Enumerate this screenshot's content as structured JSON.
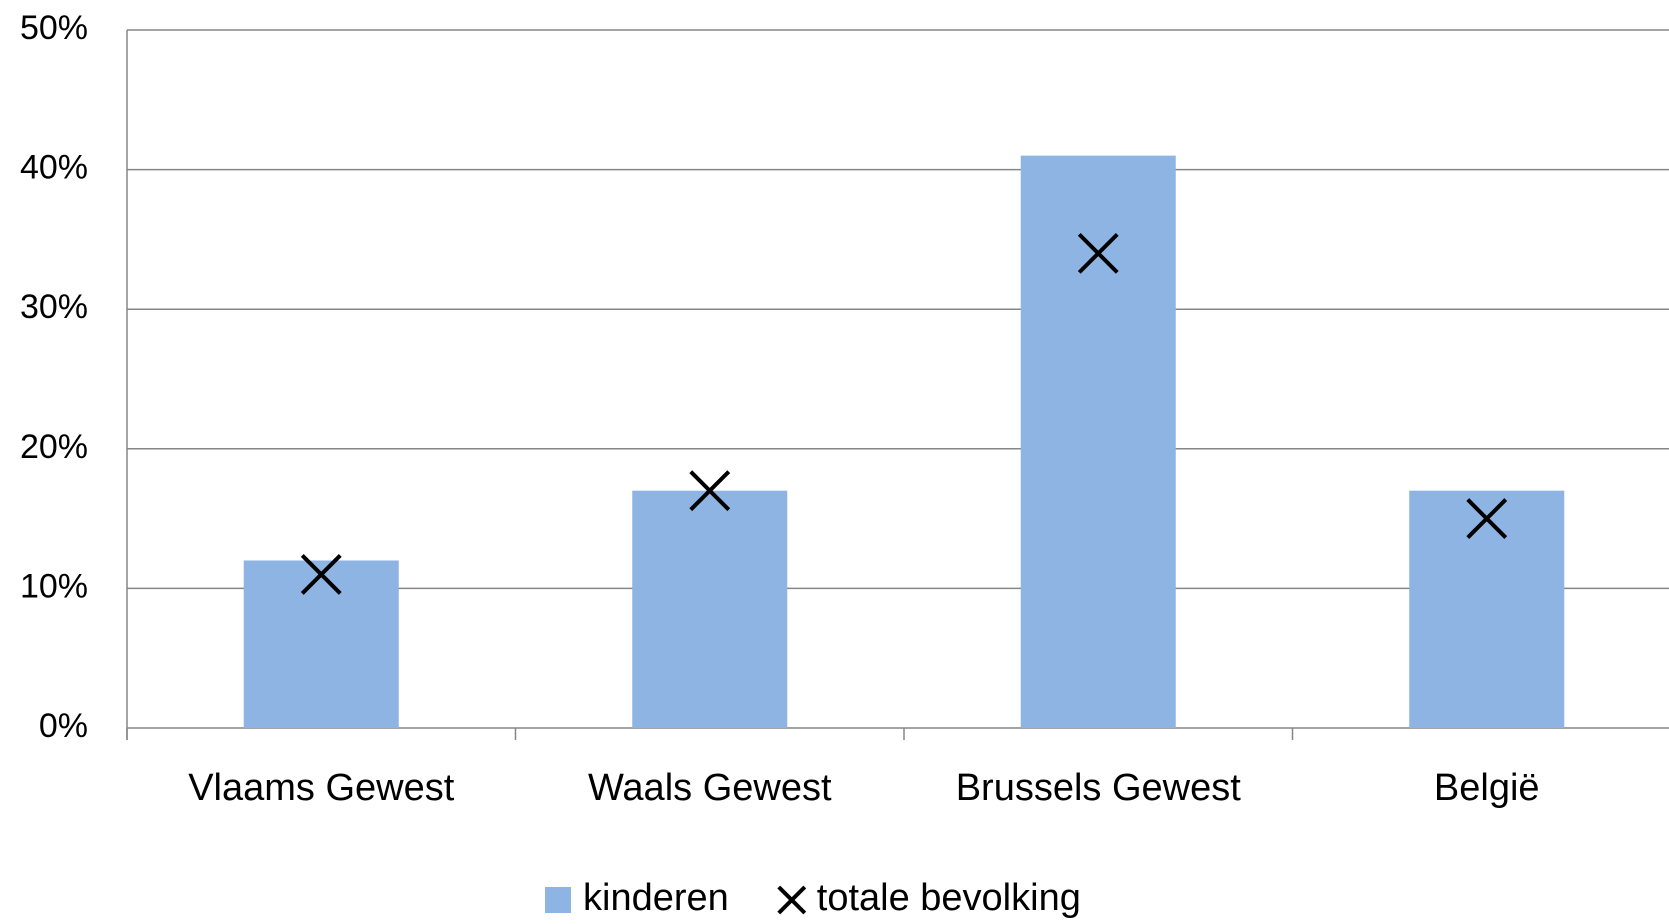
{
  "chart_data": {
    "type": "bar",
    "categories": [
      "Vlaams Gewest",
      "Waals Gewest",
      "Brussels Gewest",
      "België"
    ],
    "series": [
      {
        "name": "kinderen",
        "color": "#8eb4e3",
        "values": [
          12,
          17,
          41,
          17
        ]
      },
      {
        "name": "totale bevolking",
        "color": "#000000",
        "marker": "x",
        "values": [
          11,
          17,
          34,
          15
        ]
      }
    ],
    "ylim": [
      0,
      50
    ],
    "yticks": [
      {
        "value": 0,
        "label": "0%"
      },
      {
        "value": 10,
        "label": "10%"
      },
      {
        "value": 20,
        "label": "20%"
      },
      {
        "value": 30,
        "label": "30%"
      },
      {
        "value": 40,
        "label": "40%"
      },
      {
        "value": 50,
        "label": "50%"
      }
    ],
    "grid": true,
    "legend": "bottom"
  }
}
